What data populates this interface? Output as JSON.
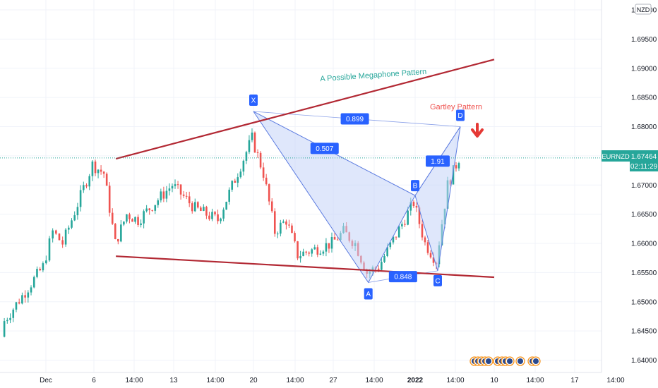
{
  "instrument": {
    "symbol": "EURNZD",
    "last_price": "1.67464",
    "countdown": "02:11:29",
    "currency_badge": "NZD"
  },
  "colors": {
    "up": "#26a69a",
    "down": "#ef5350",
    "trendline": "#b22833",
    "pattern_fill": "#c5d3f7",
    "pattern_line": "#5b7be0",
    "label_bg": "#2962ff",
    "megaphone_text": "#26a69a",
    "gartley_text": "#ef5350",
    "price_line": "#26a69a"
  },
  "annotations": {
    "megaphone_label": "A Possible Megaphone Pattern",
    "gartley_label": "Gartley Pattern",
    "points": [
      {
        "name": "X",
        "date": "Dec 20",
        "price": 1.6826
      },
      {
        "name": "A",
        "date": "Dec 30",
        "price": 1.6533
      },
      {
        "name": "B",
        "date": "Jan 3",
        "price": 1.6682
      },
      {
        "name": "C",
        "date": "Jan 5",
        "price": 1.6553
      },
      {
        "name": "D",
        "date": "Jan 7",
        "price": 1.68
      }
    ],
    "ratios": [
      {
        "label": "0.899",
        "between": "X-D"
      },
      {
        "label": "0.507",
        "between": "X-B"
      },
      {
        "label": "1.91",
        "between": "B-D"
      },
      {
        "label": "0.848",
        "between": "A-C"
      }
    ]
  },
  "chart_data": {
    "type": "candlestick",
    "title": "",
    "x_tick_labels": [
      "Dec",
      "6",
      "14:00",
      "13",
      "14:00",
      "20",
      "14:00",
      "27",
      "14:00",
      "2022",
      "14:00",
      "10",
      "14:00",
      "17",
      "14:00"
    ],
    "y_tick_labels": [
      "1.64000",
      "1.64500",
      "1.65000",
      "1.65500",
      "1.66000",
      "1.66500",
      "1.67000",
      "1.67500",
      "1.68000",
      "1.68500",
      "1.69000",
      "1.69500",
      "1.70000"
    ],
    "ylim": [
      1.6385,
      1.7008
    ],
    "y_axis_side": "right",
    "grid": true,
    "series": [
      {
        "date": "Nov 29",
        "close": 1.646
      },
      {
        "date": "Dec 1",
        "close": 1.656
      },
      {
        "date": "Dec 2",
        "close": 1.662
      },
      {
        "date": "Dec 3",
        "close": 1.66
      },
      {
        "date": "Dec 6",
        "close": 1.6735
      },
      {
        "date": "Dec 7",
        "close": 1.672
      },
      {
        "date": "Dec 8",
        "close": 1.66
      },
      {
        "date": "Dec 9",
        "close": 1.665
      },
      {
        "date": "Dec 10",
        "close": 1.664
      },
      {
        "date": "Dec 13",
        "close": 1.67
      },
      {
        "date": "Dec 14",
        "close": 1.668
      },
      {
        "date": "Dec 15",
        "close": 1.666
      },
      {
        "date": "Dec 16",
        "close": 1.665
      },
      {
        "date": "Dec 17",
        "close": 1.664
      },
      {
        "date": "Dec 20",
        "close": 1.678
      },
      {
        "date": "Dec 21",
        "close": 1.672
      },
      {
        "date": "Dec 22",
        "close": 1.662
      },
      {
        "date": "Dec 23",
        "close": 1.664
      },
      {
        "date": "Dec 24",
        "close": 1.658
      },
      {
        "date": "Dec 27",
        "close": 1.66
      },
      {
        "date": "Dec 28",
        "close": 1.662
      },
      {
        "date": "Dec 29",
        "close": 1.66
      },
      {
        "date": "Dec 30",
        "close": 1.655
      },
      {
        "date": "Dec 31",
        "close": 1.656
      },
      {
        "date": "Jan 3",
        "close": 1.667
      },
      {
        "date": "Jan 4",
        "close": 1.66
      },
      {
        "date": "Jan 5",
        "close": 1.657
      },
      {
        "date": "Jan 6",
        "close": 1.67
      },
      {
        "date": "Jan 7",
        "close": 1.6746
      }
    ],
    "trendlines": [
      {
        "name": "megaphone-upper",
        "from": {
          "date": "Dec 7",
          "price": 1.6745
        },
        "to": {
          "date": "Jan 10",
          "price": 1.6915
        }
      },
      {
        "name": "megaphone-lower",
        "from": {
          "date": "Dec 7",
          "price": 1.6578
        },
        "to": {
          "date": "Jan 10",
          "price": 1.6542
        }
      }
    ]
  }
}
